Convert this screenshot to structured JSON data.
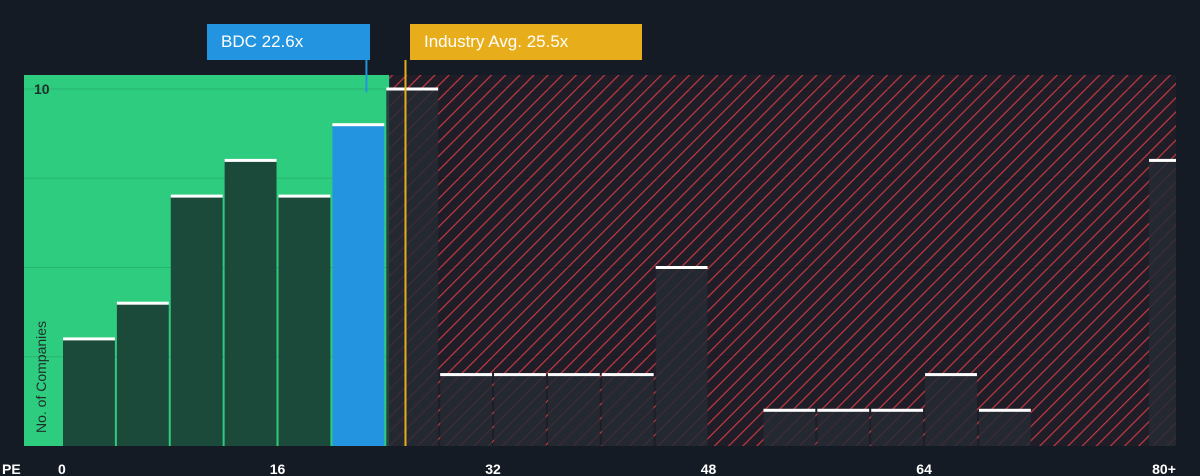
{
  "chart_data": {
    "type": "bar",
    "xlabel": "PE",
    "ylabel": "No. of Companies",
    "x_ticks": [
      "0",
      "16",
      "32",
      "48",
      "64",
      "80+"
    ],
    "y_ticks": [
      "10"
    ],
    "ylim": [
      0,
      10.3
    ],
    "bin_width": 4,
    "bins": [
      {
        "x": 0,
        "count": 3,
        "segment": "below"
      },
      {
        "x": 4,
        "count": 4,
        "segment": "below"
      },
      {
        "x": 8,
        "count": 7,
        "segment": "below"
      },
      {
        "x": 12,
        "count": 8,
        "segment": "below"
      },
      {
        "x": 16,
        "count": 7,
        "segment": "below"
      },
      {
        "x": 20,
        "count": 9,
        "segment": "company"
      },
      {
        "x": 24,
        "count": 10,
        "segment": "above"
      },
      {
        "x": 28,
        "count": 2,
        "segment": "above"
      },
      {
        "x": 32,
        "count": 2,
        "segment": "above"
      },
      {
        "x": 36,
        "count": 2,
        "segment": "above"
      },
      {
        "x": 40,
        "count": 2,
        "segment": "above"
      },
      {
        "x": 44,
        "count": 5,
        "segment": "above"
      },
      {
        "x": 52,
        "count": 1,
        "segment": "above"
      },
      {
        "x": 56,
        "count": 1,
        "segment": "above"
      },
      {
        "x": 60,
        "count": 1,
        "segment": "above"
      },
      {
        "x": 64,
        "count": 2,
        "segment": "above"
      },
      {
        "x": 68,
        "count": 1,
        "segment": "above"
      },
      {
        "x": 80,
        "count": 8,
        "segment": "above"
      }
    ],
    "company": {
      "label": "BDC 22.6x",
      "pe": 22.6
    },
    "industry_avg": {
      "label": "Industry Avg. 25.5x",
      "pe": 25.5
    },
    "colors": {
      "background": "#151b24",
      "below_region": "#2ecc7f",
      "below_bar": "#1b4a3b",
      "company_bar": "#2394e0",
      "above_region_hatch": "#c53a42",
      "above_bar": "#262a34",
      "bar_cap": "#ffffff",
      "industry_line": "#e8ad1a",
      "text": "#ffffff"
    }
  }
}
